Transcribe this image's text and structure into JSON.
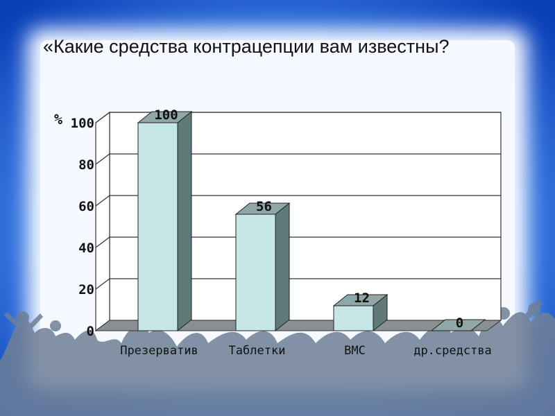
{
  "slide": {
    "title": "«Какие средства контрацепции вам известны?",
    "colors": {
      "background_blue": "#1f5fd0",
      "panel": "#f4f8ff",
      "bar_front": "#c7e6e6",
      "bar_side": "#5f7a78",
      "bar_top": "#8fa7a6",
      "silhouettes": "#6f7f96"
    }
  },
  "chart_data": {
    "type": "bar",
    "style": "3d",
    "categories": [
      "Презерватив",
      "Таблетки",
      "ВМС",
      "др.средства"
    ],
    "values": [
      100,
      56,
      12,
      0
    ],
    "data_labels": [
      "100",
      "56",
      "12",
      "0"
    ],
    "title": "",
    "xlabel": "",
    "ylabel": "%",
    "ylim": [
      0,
      100
    ],
    "yticks": [
      0,
      20,
      40,
      60,
      80,
      100
    ],
    "grid": true,
    "legend": "none"
  }
}
